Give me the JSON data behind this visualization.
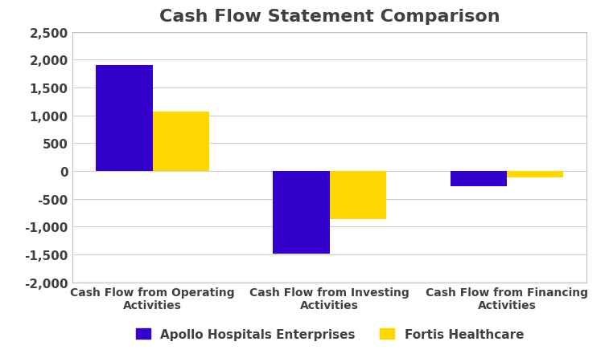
{
  "title": "Cash Flow Statement Comparison",
  "categories": [
    "Cash Flow from Operating\nActivities",
    "Cash Flow from Investing\nActivities",
    "Cash Flow from Financing\nActivities"
  ],
  "apollo_values": [
    1900,
    -1480,
    -280
  ],
  "fortis_values": [
    1060,
    -870,
    -120
  ],
  "apollo_color": "#3300cc",
  "fortis_color": "#ffd700",
  "ylim": [
    -2000,
    2500
  ],
  "yticks": [
    -2000,
    -1500,
    -1000,
    -500,
    0,
    500,
    1000,
    1500,
    2000,
    2500
  ],
  "legend_labels": [
    "Apollo Hospitals Enterprises",
    "Fortis Healthcare"
  ],
  "bar_width": 0.32,
  "title_fontsize": 16,
  "tick_fontsize": 11,
  "legend_fontsize": 11,
  "xtick_fontsize": 10,
  "title_color": "#404040",
  "tick_color": "#404040",
  "background_color": "#ffffff",
  "grid_color": "#d0d0d0",
  "border_color": "#c0c0c0"
}
